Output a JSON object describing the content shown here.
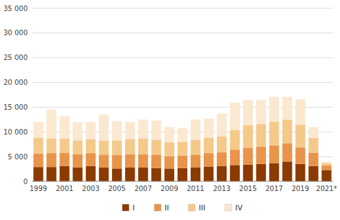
{
  "chart_data": {
    "type": "bar",
    "stacked": true,
    "grid": true,
    "legend": "bottom",
    "categories": [
      "1999",
      null,
      "2001",
      null,
      "2003",
      null,
      "2005",
      null,
      "2007",
      null,
      "2009",
      null,
      "2011",
      null,
      "2013",
      null,
      "2015",
      null,
      "2017",
      null,
      "2019",
      null,
      "2021*"
    ],
    "series": [
      {
        "name": "I",
        "color": "#8B3A00",
        "values": [
          2900,
          2900,
          3100,
          2800,
          3100,
          2800,
          2600,
          2800,
          2800,
          2700,
          2600,
          2700,
          2800,
          3000,
          3100,
          3300,
          3400,
          3500,
          3700,
          4000,
          3500,
          3100,
          2300
        ]
      },
      {
        "name": "II",
        "color": "#E8944A",
        "values": [
          2700,
          2800,
          2700,
          2700,
          2600,
          2600,
          2700,
          2700,
          2700,
          2700,
          2500,
          2500,
          2600,
          2700,
          2800,
          3100,
          3400,
          3500,
          3600,
          3700,
          3400,
          2700,
          900
        ]
      },
      {
        "name": "III",
        "color": "#F5C98A",
        "values": [
          3200,
          3000,
          2900,
          2800,
          2800,
          2800,
          3000,
          3000,
          3200,
          3000,
          2800,
          2800,
          3000,
          3100,
          3200,
          4000,
          4500,
          4600,
          4800,
          4800,
          4600,
          3000,
          500
        ]
      },
      {
        "name": "IV",
        "color": "#FAE8D0",
        "values": [
          3200,
          5800,
          4500,
          3700,
          3500,
          5300,
          3900,
          3500,
          3800,
          3900,
          3100,
          2800,
          4100,
          3900,
          4600,
          5500,
          5200,
          4900,
          5000,
          4600,
          5100,
          2200,
          300
        ]
      }
    ],
    "ylim": [
      0,
      35000
    ],
    "yticks": [
      0,
      {
        "value": 5000,
        "label": "5 000"
      },
      {
        "value": 10000,
        "label": "10 000"
      },
      {
        "value": 15000,
        "label": "15 000"
      },
      {
        "value": 20000,
        "label": "20 000"
      },
      {
        "value": 25000,
        "label": "25 000"
      },
      {
        "value": 30000,
        "label": "30 000"
      },
      {
        "value": 35000,
        "label": "35 000"
      }
    ]
  }
}
